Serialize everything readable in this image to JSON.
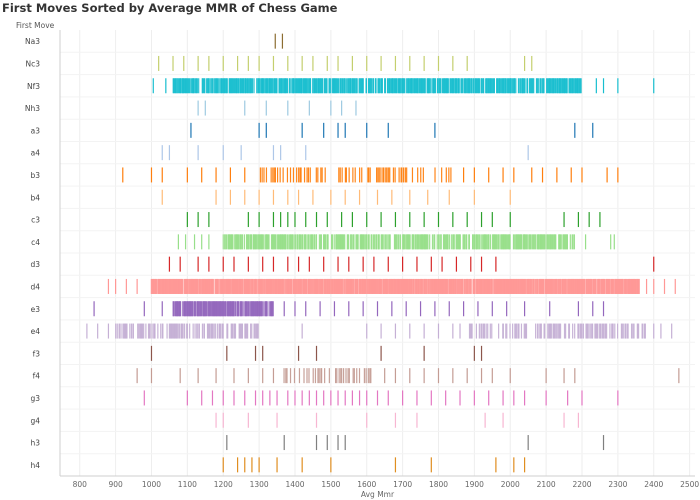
{
  "title": "First Moves Sorted by Average MMR of Chess Game",
  "row_header": "First Move",
  "chart_data": {
    "type": "barcode",
    "title": "First Moves Sorted by Average MMR of Chess Game",
    "xlabel": "Avg Mmr",
    "ylabel": "First Move",
    "xlim": [
      745,
      2515
    ],
    "xticks": [
      800,
      900,
      1000,
      1100,
      1200,
      1300,
      1400,
      1500,
      1600,
      1700,
      1800,
      1900,
      2000,
      2100,
      2200,
      2300,
      2400,
      2500
    ],
    "grid": "x-vertical",
    "rows": [
      {
        "move": "Na3",
        "color": "#8c6d31",
        "values": [
          1345,
          1365
        ]
      },
      {
        "move": "Nc3",
        "color": "#c4cf6e",
        "values": [
          1020,
          1060,
          1090,
          1130,
          1160,
          1200,
          1240,
          1270,
          1300,
          1340,
          1380,
          1420,
          1450,
          1490,
          1520,
          1560,
          1600,
          1640,
          1680,
          1720,
          1760,
          1800,
          1840,
          1880,
          2040,
          2060
        ]
      },
      {
        "move": "Nf3",
        "color": "#17becf",
        "dense": [
          [
            1060,
            2200,
            2.4,
            90
          ]
        ],
        "values": [
          1005,
          1040,
          2240,
          2260,
          2300,
          2400
        ]
      },
      {
        "move": "Nh3",
        "color": "#9ecae1",
        "values": [
          1130,
          1150,
          1260,
          1320,
          1380,
          1440,
          1500,
          1530,
          1570
        ]
      },
      {
        "move": "a3",
        "color": "#1f77b4",
        "values": [
          1110,
          1300,
          1320,
          1420,
          1480,
          1520,
          1540,
          1600,
          1660,
          1790,
          2180,
          2230
        ]
      },
      {
        "move": "a4",
        "color": "#aec7e8",
        "values": [
          1030,
          1050,
          1130,
          1200,
          1250,
          1340,
          1360,
          1430,
          2050
        ]
      },
      {
        "move": "b3",
        "color": "#ff7f0e",
        "dense": [
          [
            1300,
            1840,
            4.2,
            50
          ]
        ],
        "values": [
          920,
          1000,
          1030,
          1100,
          1140,
          1180,
          1220,
          1260,
          1870,
          1900,
          1940,
          1980,
          2010,
          2060,
          2090,
          2130,
          2170,
          2200,
          2270,
          2300
        ]
      },
      {
        "move": "b4",
        "color": "#ffbb78",
        "values": [
          1030,
          1180,
          1220,
          1260,
          1300,
          1340,
          1380,
          1410,
          1450,
          1500,
          1540,
          1580,
          1630,
          1670,
          1720,
          1770,
          1830,
          1900,
          2000
        ]
      },
      {
        "move": "c3",
        "color": "#2ca02c",
        "values": [
          1100,
          1130,
          1160,
          1270,
          1300,
          1340,
          1360,
          1380,
          1400,
          1430,
          1460,
          1490,
          1530,
          1560,
          1600,
          1640,
          1680,
          1720,
          1760,
          1800,
          1840,
          1880,
          1920,
          1950,
          2000,
          2150,
          2190,
          2220,
          2250
        ]
      },
      {
        "move": "c4",
        "color": "#98df8a",
        "dense": [
          [
            1200,
            2180,
            1.9,
            70
          ]
        ],
        "values": [
          1075,
          1095,
          1120,
          1140,
          1160,
          2210,
          2280,
          2290
        ]
      },
      {
        "move": "d3",
        "color": "#d62728",
        "values": [
          1050,
          1080,
          1130,
          1160,
          1200,
          1230,
          1270,
          1310,
          1340,
          1380,
          1410,
          1440,
          1480,
          1520,
          1550,
          1590,
          1620,
          1660,
          1700,
          1740,
          1780,
          1810,
          1850,
          1890,
          1920,
          1960,
          2400
        ]
      },
      {
        "move": "d4",
        "color": "#ff9896",
        "dense": [
          [
            1000,
            2360,
            1.6,
            90
          ]
        ],
        "values": [
          880,
          900,
          930,
          960,
          2380,
          2400,
          2430,
          2460
        ]
      },
      {
        "move": "e3",
        "color": "#9467bd",
        "dense": [
          [
            1060,
            1340,
            1.8,
            85
          ]
        ],
        "values": [
          840,
          980,
          1030,
          1370,
          1400,
          1430,
          1470,
          1510,
          1550,
          1590,
          1630,
          1670,
          1710,
          1750,
          1790,
          1830,
          1870,
          1910,
          1950,
          1990,
          2040,
          2110,
          2190,
          2230,
          2260
        ]
      },
      {
        "move": "e4",
        "color": "#c5b0d5",
        "dense": [
          [
            900,
            1300,
            2.0,
            60
          ],
          [
            1880,
            2380,
            2.3,
            50
          ]
        ],
        "values": [
          820,
          850,
          880,
          1420,
          1600,
          1640,
          1680,
          1720,
          1760,
          1800,
          1840,
          1860,
          2400,
          2420,
          2450
        ]
      },
      {
        "move": "f3",
        "color": "#8c564b",
        "values": [
          1000,
          1210,
          1290,
          1310,
          1410,
          1460,
          1640,
          1760,
          1900,
          1920
        ]
      },
      {
        "move": "f4",
        "color": "#c49c94",
        "dense": [
          [
            1370,
            1620,
            3.5,
            45
          ]
        ],
        "values": [
          960,
          1000,
          1080,
          1130,
          1180,
          1230,
          1270,
          1310,
          1340,
          1650,
          1680,
          1720,
          1760,
          1800,
          1840,
          1880,
          1920,
          1950,
          2000,
          2100,
          2150,
          2180,
          2470
        ]
      },
      {
        "move": "g3",
        "color": "#e377c2",
        "values": [
          980,
          1100,
          1140,
          1170,
          1200,
          1230,
          1260,
          1290,
          1310,
          1330,
          1350,
          1380,
          1400,
          1420,
          1440,
          1460,
          1480,
          1500,
          1520,
          1540,
          1560,
          1580,
          1600,
          1630,
          1660,
          1700,
          1740,
          1780,
          1820,
          1860,
          1900,
          1940,
          1980,
          2010,
          2040,
          2100,
          2160,
          2200,
          2300
        ]
      },
      {
        "move": "g4",
        "color": "#f7b6d2",
        "values": [
          1180,
          1200,
          1270,
          1350,
          1460,
          1600,
          1680,
          1740,
          1930,
          1980,
          2150,
          2190
        ]
      },
      {
        "move": "h3",
        "color": "#7f7f7f",
        "values": [
          1210,
          1370,
          1460,
          1490,
          1520,
          1540,
          2050,
          2260
        ]
      },
      {
        "move": "h4",
        "color": "#e08e20",
        "values": [
          1200,
          1240,
          1260,
          1280,
          1300,
          1350,
          1420,
          1500,
          1680,
          1780,
          1960,
          2010,
          2040
        ]
      }
    ]
  }
}
